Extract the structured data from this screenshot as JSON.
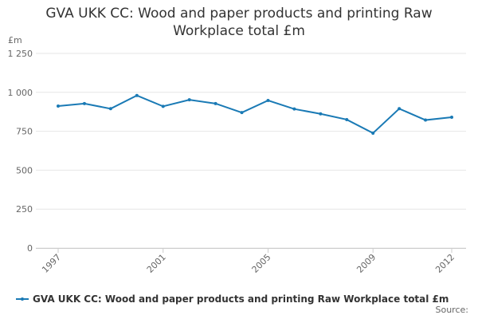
{
  "chart_data": {
    "type": "line",
    "title": "GVA UKK CC: Wood and paper products and printing Raw Workplace total £m",
    "y_axis_label": "£m",
    "x": [
      1997,
      1998,
      1999,
      2000,
      2001,
      2002,
      2003,
      2004,
      2005,
      2006,
      2007,
      2008,
      2009,
      2010,
      2011,
      2012
    ],
    "series": [
      {
        "name": "GVA UKK CC: Wood and paper products and printing Raw Workplace total £m",
        "color": "#1a7ab5",
        "values": [
          912,
          928,
          895,
          980,
          910,
          952,
          928,
          870,
          948,
          893,
          862,
          825,
          738,
          895,
          822,
          840
        ]
      }
    ],
    "xlim": [
      1997,
      2012
    ],
    "xticks": [
      1997,
      2001,
      2005,
      2009,
      2012
    ],
    "ylim": [
      0,
      1250
    ],
    "yticks": [
      0,
      250,
      500,
      750,
      {
        "value": 1000,
        "label": "1 000"
      },
      {
        "value": 1250,
        "label": "1 250"
      }
    ],
    "grid": true,
    "source": "Source:"
  }
}
